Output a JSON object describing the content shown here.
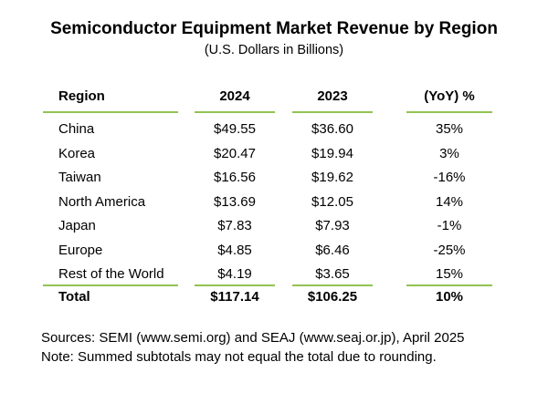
{
  "title": "Semiconductor Equipment Market Revenue by Region",
  "subtitle": "(U.S. Dollars in Billions)",
  "columns": [
    "Region",
    "2024",
    "2023",
    "(YoY) %"
  ],
  "rows": [
    {
      "region": "China",
      "y2024": "$49.55",
      "y2023": "$36.60",
      "yoy": "35%"
    },
    {
      "region": "Korea",
      "y2024": "$20.47",
      "y2023": "$19.94",
      "yoy": "3%"
    },
    {
      "region": "Taiwan",
      "y2024": "$16.56",
      "y2023": "$19.62",
      "yoy": "-16%"
    },
    {
      "region": "North America",
      "y2024": "$13.69",
      "y2023": "$12.05",
      "yoy": "14%"
    },
    {
      "region": "Japan",
      "y2024": "$7.83",
      "y2023": "$7.93",
      "yoy": "-1%"
    },
    {
      "region": "Europe",
      "y2024": "$4.85",
      "y2023": "$6.46",
      "yoy": "-25%"
    },
    {
      "region": "Rest of the World",
      "y2024": "$4.19",
      "y2023": "$3.65",
      "yoy": "15%"
    }
  ],
  "total": {
    "region": "Total",
    "y2024": "$117.14",
    "y2023": "$106.25",
    "yoy": "10%"
  },
  "sources": "Sources: SEMI (www.semi.org) and SEAJ (www.seaj.or.jp), April 2025",
  "note": "Note: Summed subtotals may not equal the total due to rounding.",
  "colors": {
    "rule": "#92c353",
    "text": "#000000",
    "background": "#ffffff"
  }
}
